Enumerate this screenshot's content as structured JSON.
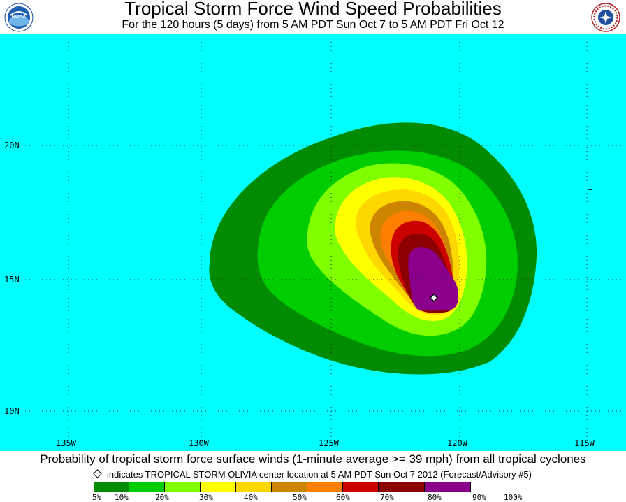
{
  "header": {
    "title": "Tropical Storm Force Wind Speed Probabilities",
    "subtitle": "For the 120 hours (5 days) from 5 AM PDT Sun Oct 7 to 5 AM PDT Fri Oct 12"
  },
  "logos": {
    "left": "NOAA",
    "right": "NATIONAL WEATHER SERVICE"
  },
  "map": {
    "ocean_color": "#00ffff",
    "grid_color": "#222222",
    "latitude_labels": [
      "20N",
      "15N",
      "10N"
    ],
    "longitude_labels": [
      "135W",
      "130W",
      "125W",
      "120W",
      "115W"
    ],
    "storm_center_marker": "diamond"
  },
  "footer": {
    "caption": "Probability of tropical storm force surface winds (1-minute average >= 39 mph) from all tropical cyclones",
    "note": "indicates TROPICAL STORM OLIVIA center location at 5 AM PDT Sun Oct 7 2012 (Forecast/Advisory #5)"
  },
  "legend": {
    "labels": [
      "5%",
      "10%",
      "20%",
      "30%",
      "40%",
      "50%",
      "60%",
      "70%",
      "80%",
      "90%",
      "100%"
    ],
    "colors": [
      "#008b00",
      "#00cd00",
      "#7fff00",
      "#ffff00",
      "#ffd700",
      "#cd8500",
      "#ff7f00",
      "#cd0000",
      "#8b0000",
      "#8b008b"
    ]
  }
}
